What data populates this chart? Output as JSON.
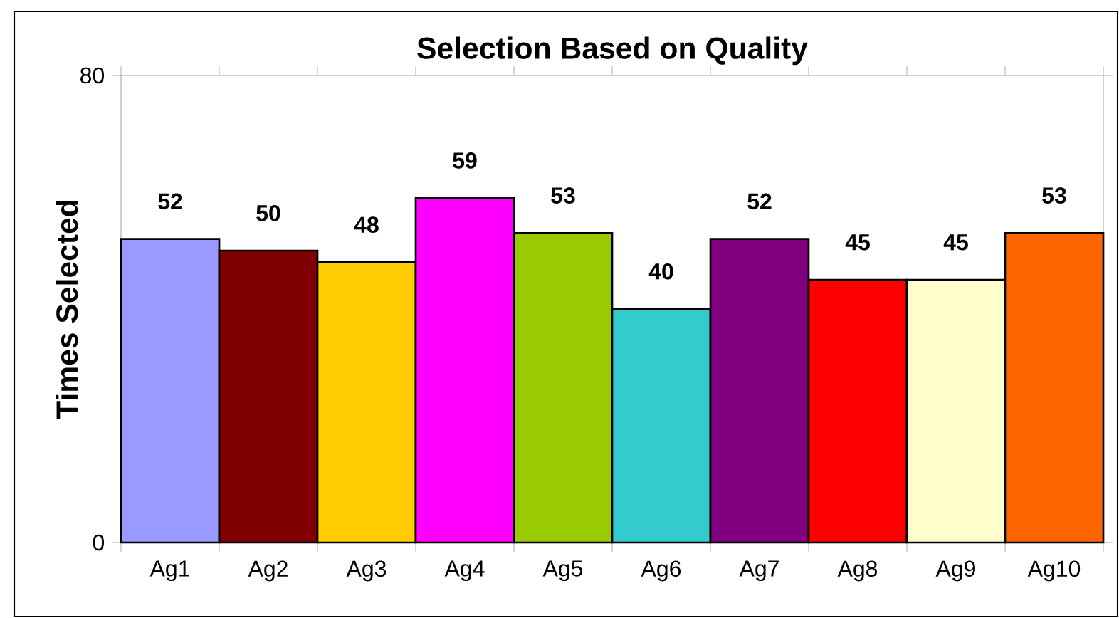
{
  "chart_data": {
    "type": "bar",
    "title": "Selection Based on Quality",
    "ylabel": "Times Selected",
    "categories": [
      "Ag1",
      "Ag2",
      "Ag3",
      "Ag4",
      "Ag5",
      "Ag6",
      "Ag7",
      "Ag8",
      "Ag9",
      "Ag10"
    ],
    "values": [
      52,
      50,
      48,
      59,
      53,
      40,
      52,
      45,
      45,
      53
    ],
    "colors": [
      "#9999ff",
      "#800000",
      "#ffcc00",
      "#ff00ff",
      "#99cc00",
      "#33cccc",
      "#800080",
      "#ff0000",
      "#ffffcc",
      "#ff6600"
    ],
    "ylim": [
      0,
      80
    ],
    "yticks": [
      0,
      80
    ],
    "data_labels": true,
    "grid": false
  }
}
